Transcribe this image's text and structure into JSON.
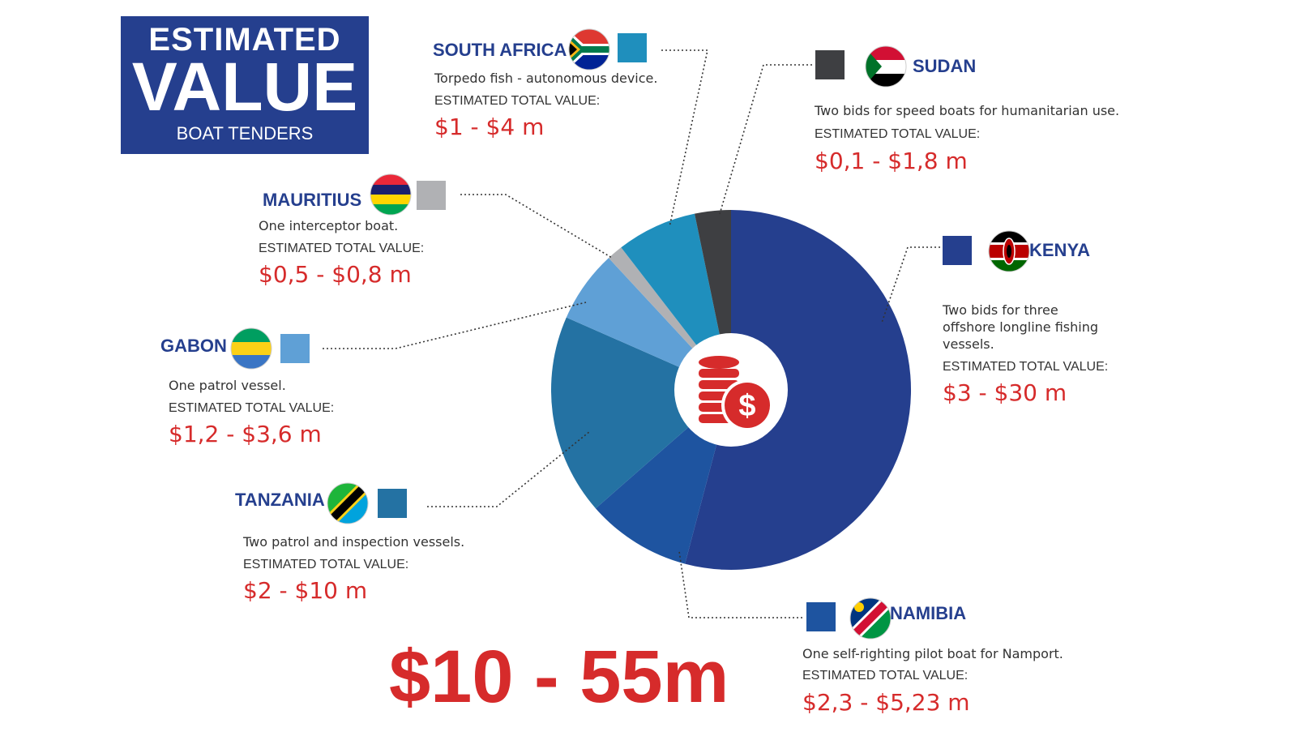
{
  "header": {
    "line1": "ESTIMATED",
    "line2": "VALUE",
    "line3": "BOAT TENDERS"
  },
  "estimated_label": "ESTIMATED TOTAL VALUE:",
  "total": "$10 - 55m",
  "colors": {
    "navy": "#253f8e",
    "red": "#d62b2b",
    "kenya": "#253f8e",
    "namibia": "#1e54a0",
    "tanzania": "#2472a3",
    "gabon": "#5fa0d6",
    "mauritius": "#b0b1b4",
    "south_africa": "#1f8fbd",
    "sudan": "#3e3f42"
  },
  "countries": {
    "south_africa": {
      "name": "SOUTH AFRICA",
      "desc": "Torpedo fish - autonomous device.",
      "value": "$1 - $4 m",
      "flag": "south-africa-flag-icon"
    },
    "sudan": {
      "name": "SUDAN",
      "desc": "Two bids for speed boats for humanitarian use.",
      "value": "$0,1 - $1,8 m",
      "flag": "sudan-flag-icon"
    },
    "mauritius": {
      "name": "MAURITIUS",
      "desc": "One interceptor boat.",
      "value": "$0,5 - $0,8 m",
      "flag": "mauritius-flag-icon"
    },
    "kenya": {
      "name": "KENYA",
      "desc1": "Two bids for three",
      "desc2": "offshore longline fishing",
      "desc3": "vessels.",
      "value": "$3 - $30 m",
      "flag": "kenya-flag-icon"
    },
    "gabon": {
      "name": "GABON",
      "desc": "One patrol vessel.",
      "value": "$1,2 - $3,6 m",
      "flag": "gabon-flag-icon"
    },
    "tanzania": {
      "name": "TANZANIA",
      "desc": "Two patrol and inspection vessels.",
      "value": "$2 - $10 m",
      "flag": "tanzania-flag-icon"
    },
    "namibia": {
      "name": "NAMIBIA",
      "desc": "One self-righting pilot boat for Namport.",
      "value": "$2,3 - $5,23 m",
      "flag": "namibia-flag-icon"
    }
  },
  "chart_data": {
    "type": "pie",
    "style": "donut",
    "center_icon": "coins-dollar-icon",
    "labels": [
      "Kenya",
      "Namibia",
      "Tanzania",
      "Gabon",
      "Mauritius",
      "South Africa",
      "Sudan"
    ],
    "values": [
      30,
      5.23,
      10,
      3.6,
      0.8,
      4,
      1.8
    ],
    "colors": [
      "#253f8e",
      "#1e54a0",
      "#2472a3",
      "#5fa0d6",
      "#b0b1b4",
      "#1f8fbd",
      "#3e3f42"
    ],
    "start": "12 o'clock, clockwise"
  }
}
